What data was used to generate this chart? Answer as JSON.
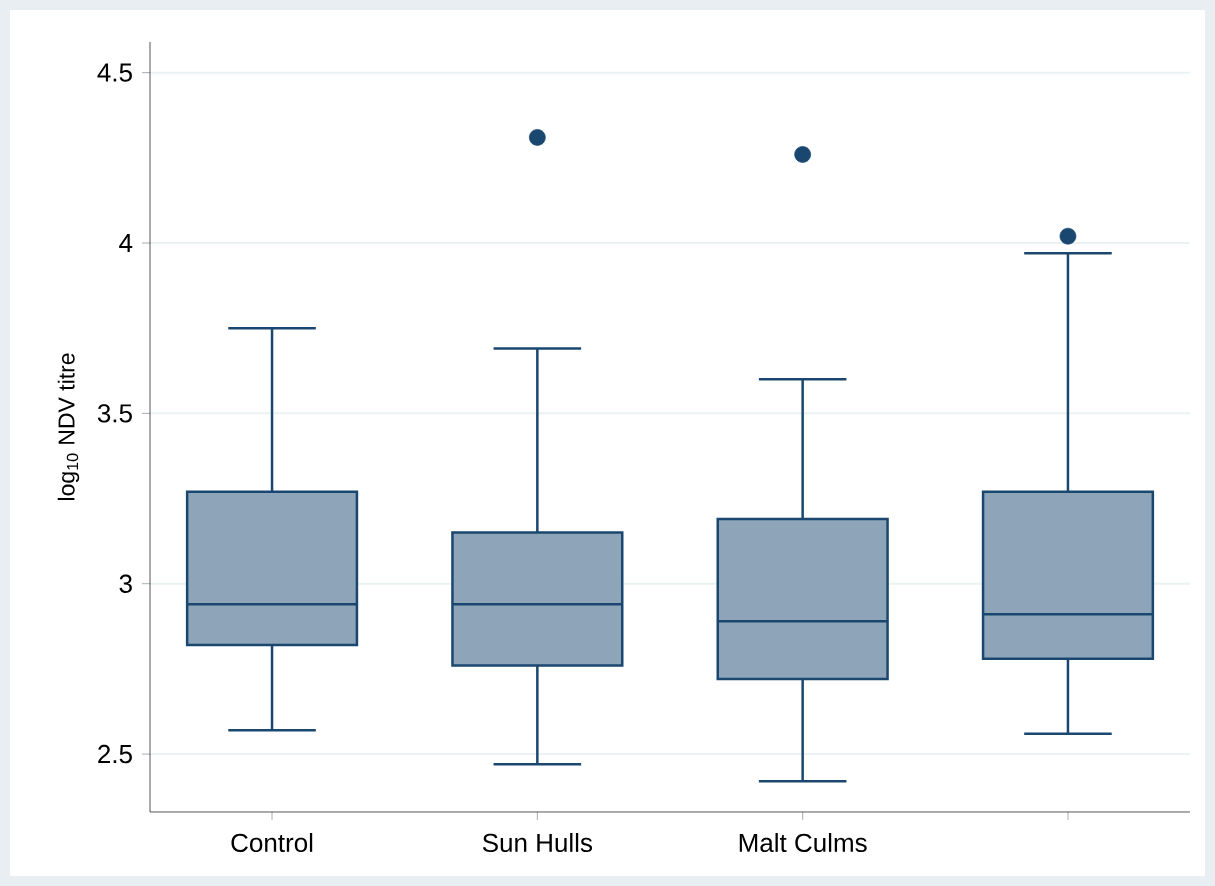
{
  "chart_data": {
    "type": "box",
    "ylabel": "log$_{10}$ NDV titre",
    "categories": [
      "Control",
      "Sun Hulls",
      "Malt Culms",
      null
    ],
    "color": "#8ea4b8",
    "boxes": [
      {
        "low": 2.57,
        "q1": 2.82,
        "median": 2.94,
        "q3": 3.27,
        "high": 3.75
      },
      {
        "low": 2.47,
        "q1": 2.76,
        "median": 2.94,
        "q3": 3.15,
        "high": 3.69,
        "outliers": [
          4.31
        ]
      },
      {
        "low": 2.42,
        "q1": 2.72,
        "median": 2.89,
        "q3": 3.19,
        "high": 3.6,
        "outliers": [
          4.26
        ]
      },
      {
        "low": 2.56,
        "q1": 2.78,
        "median": 2.91,
        "q3": 3.27,
        "high": 3.97,
        "outliers": [
          4.02
        ]
      }
    ],
    "ylim": [
      2.33,
      4.59
    ],
    "yticks": [
      2.5,
      3,
      3.5,
      4,
      4.5
    ],
    "grid": "y",
    "marker": "circle"
  }
}
